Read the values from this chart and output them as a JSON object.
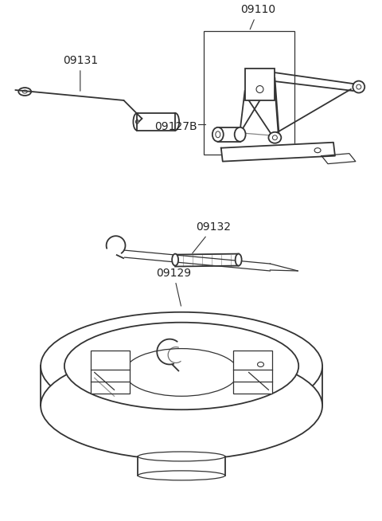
{
  "bg_color": "#ffffff",
  "line_color": "#333333",
  "label_color": "#222222",
  "label_fontsize": 10,
  "fig_w": 4.8,
  "fig_h": 6.54,
  "dpi": 100
}
